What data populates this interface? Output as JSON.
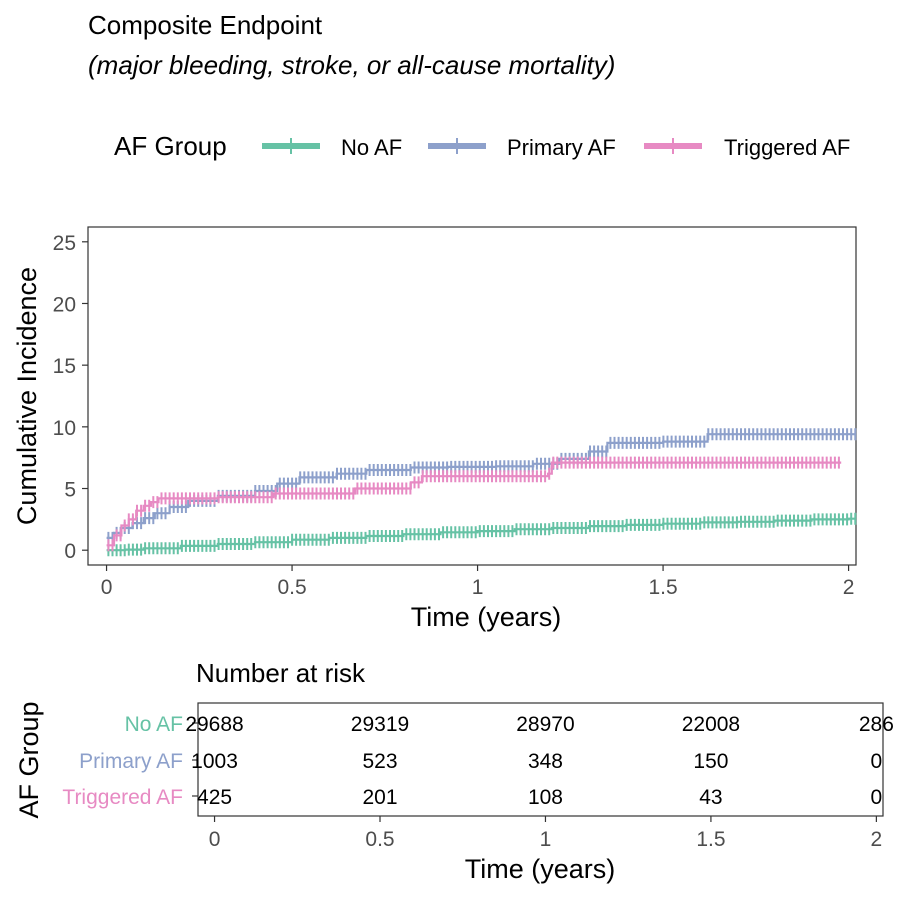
{
  "title": "Composite Endpoint",
  "subtitle": "(major bleeding, stroke, or all-cause mortality)",
  "legend": {
    "title": "AF Group",
    "items": [
      {
        "label": "No AF",
        "color": "#66C2A5"
      },
      {
        "label": "Primary AF",
        "color": "#8DA0CB"
      },
      {
        "label": "Triggered AF",
        "color": "#E78AC3"
      }
    ]
  },
  "chart_data": [
    {
      "type": "line",
      "title": "Composite Endpoint",
      "xlabel": "Time (years)",
      "ylabel": "Cumulative Incidence",
      "xlim": [
        -0.05,
        2.02
      ],
      "ylim": [
        -1.2,
        26.2
      ],
      "xticks": [
        0,
        0.5,
        1,
        1.5,
        2
      ],
      "xtick_labels": [
        "0",
        "0.5",
        "1",
        "1.5",
        "2"
      ],
      "yticks": [
        0,
        5,
        10,
        15,
        20,
        25
      ],
      "ytick_labels": [
        "0",
        "5",
        "10",
        "15",
        "20",
        "25"
      ],
      "grid": false,
      "legend_position": "top",
      "series": [
        {
          "name": "No AF",
          "color": "#66C2A5",
          "step": true,
          "censor_marks": true,
          "x": [
            0,
            0.05,
            0.1,
            0.2,
            0.3,
            0.4,
            0.5,
            0.6,
            0.7,
            0.8,
            0.9,
            1.0,
            1.1,
            1.2,
            1.3,
            1.4,
            1.5,
            1.6,
            1.7,
            1.8,
            1.9,
            2.0,
            2.02
          ],
          "y": [
            0,
            0.05,
            0.15,
            0.35,
            0.5,
            0.65,
            0.85,
            1.0,
            1.15,
            1.3,
            1.45,
            1.55,
            1.7,
            1.8,
            1.95,
            2.05,
            2.15,
            2.25,
            2.3,
            2.4,
            2.5,
            2.55,
            2.55
          ]
        },
        {
          "name": "Primary AF",
          "color": "#8DA0CB",
          "step": true,
          "censor_marks": true,
          "x": [
            0,
            0.02,
            0.04,
            0.07,
            0.1,
            0.13,
            0.17,
            0.22,
            0.3,
            0.4,
            0.46,
            0.52,
            0.62,
            0.7,
            0.82,
            0.92,
            1.05,
            1.15,
            1.22,
            1.3,
            1.35,
            1.5,
            1.6,
            1.62,
            2.02
          ],
          "y": [
            1.0,
            1.4,
            1.8,
            2.2,
            2.6,
            3.0,
            3.5,
            4.0,
            4.4,
            4.8,
            5.4,
            5.9,
            6.2,
            6.5,
            6.7,
            6.75,
            6.8,
            7.0,
            7.4,
            8.0,
            8.7,
            8.8,
            8.8,
            9.4,
            9.4
          ]
        },
        {
          "name": "Triggered AF",
          "color": "#E78AC3",
          "step": true,
          "censor_marks": true,
          "x": [
            0,
            0.02,
            0.04,
            0.06,
            0.08,
            0.1,
            0.12,
            0.14,
            0.3,
            0.45,
            0.67,
            0.82,
            0.85,
            1.19,
            1.2,
            1.98
          ],
          "y": [
            0.4,
            1.2,
            2.0,
            2.5,
            3.2,
            3.6,
            3.9,
            4.2,
            4.3,
            4.6,
            5.0,
            5.5,
            6.0,
            6.2,
            7.1,
            7.1
          ]
        }
      ]
    },
    {
      "type": "table",
      "title": "Number at risk",
      "xlabel": "Time (years)",
      "ylabel": "AF Group",
      "xlim": [
        -0.05,
        2.02
      ],
      "xticks": [
        0,
        0.5,
        1,
        1.5,
        2
      ],
      "xtick_labels": [
        "0",
        "0.5",
        "1",
        "1.5",
        "2"
      ],
      "rows": [
        {
          "name": "No AF",
          "color": "#66C2A5",
          "values": [
            "29688",
            "29319",
            "28970",
            "22008",
            "286"
          ]
        },
        {
          "name": "Primary AF",
          "color": "#8DA0CB",
          "values": [
            "1003",
            "523",
            "348",
            "150",
            "0"
          ]
        },
        {
          "name": "Triggered AF",
          "color": "#E78AC3",
          "values": [
            "425",
            "201",
            "108",
            "43",
            "0"
          ]
        }
      ]
    }
  ]
}
